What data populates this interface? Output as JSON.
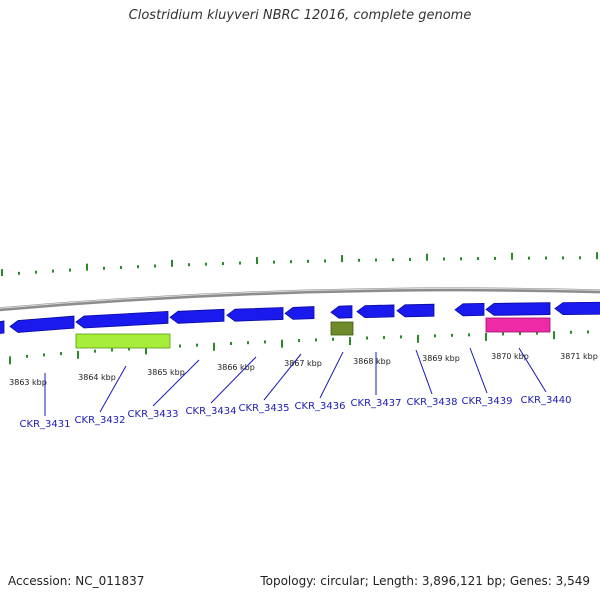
{
  "title": "Clostridium kluyveri NBRC 12016, complete genome",
  "accession_label": "Accession:",
  "accession": "NC_011837",
  "topology_label": "Topology:",
  "topology": "circular",
  "length_label": "Length:",
  "length": "3,896,121 bp",
  "genes_label": "Genes:",
  "genes": "3,549",
  "colors": {
    "backbone": "#8c8c8c",
    "gene_blue": "#1a1aee",
    "feature_lime": "#a6ee3a",
    "feature_olive": "#6e8a2a",
    "feature_magenta": "#ee2aa6",
    "tick_green": "#2a8a2a",
    "label_blue": "#1a1ab4"
  },
  "scale": {
    "unit": "kbp",
    "ticks": [
      {
        "label": "3863 kbp"
      },
      {
        "label": "3864 kbp"
      },
      {
        "label": "3865 kbp"
      },
      {
        "label": "3866 kbp"
      },
      {
        "label": "3867 kbp"
      },
      {
        "label": "3868 kbp"
      },
      {
        "label": "3869 kbp"
      },
      {
        "label": "3870 kbp"
      },
      {
        "label": "3871 kbp"
      }
    ]
  },
  "gene_labels": [
    {
      "name": "CKR_3431"
    },
    {
      "name": "CKR_3432"
    },
    {
      "name": "CKR_3433"
    },
    {
      "name": "CKR_3434"
    },
    {
      "name": "CKR_3435"
    },
    {
      "name": "CKR_3436"
    },
    {
      "name": "CKR_3437"
    },
    {
      "name": "CKR_3438"
    },
    {
      "name": "CKR_3439"
    },
    {
      "name": "CKR_3440"
    }
  ]
}
